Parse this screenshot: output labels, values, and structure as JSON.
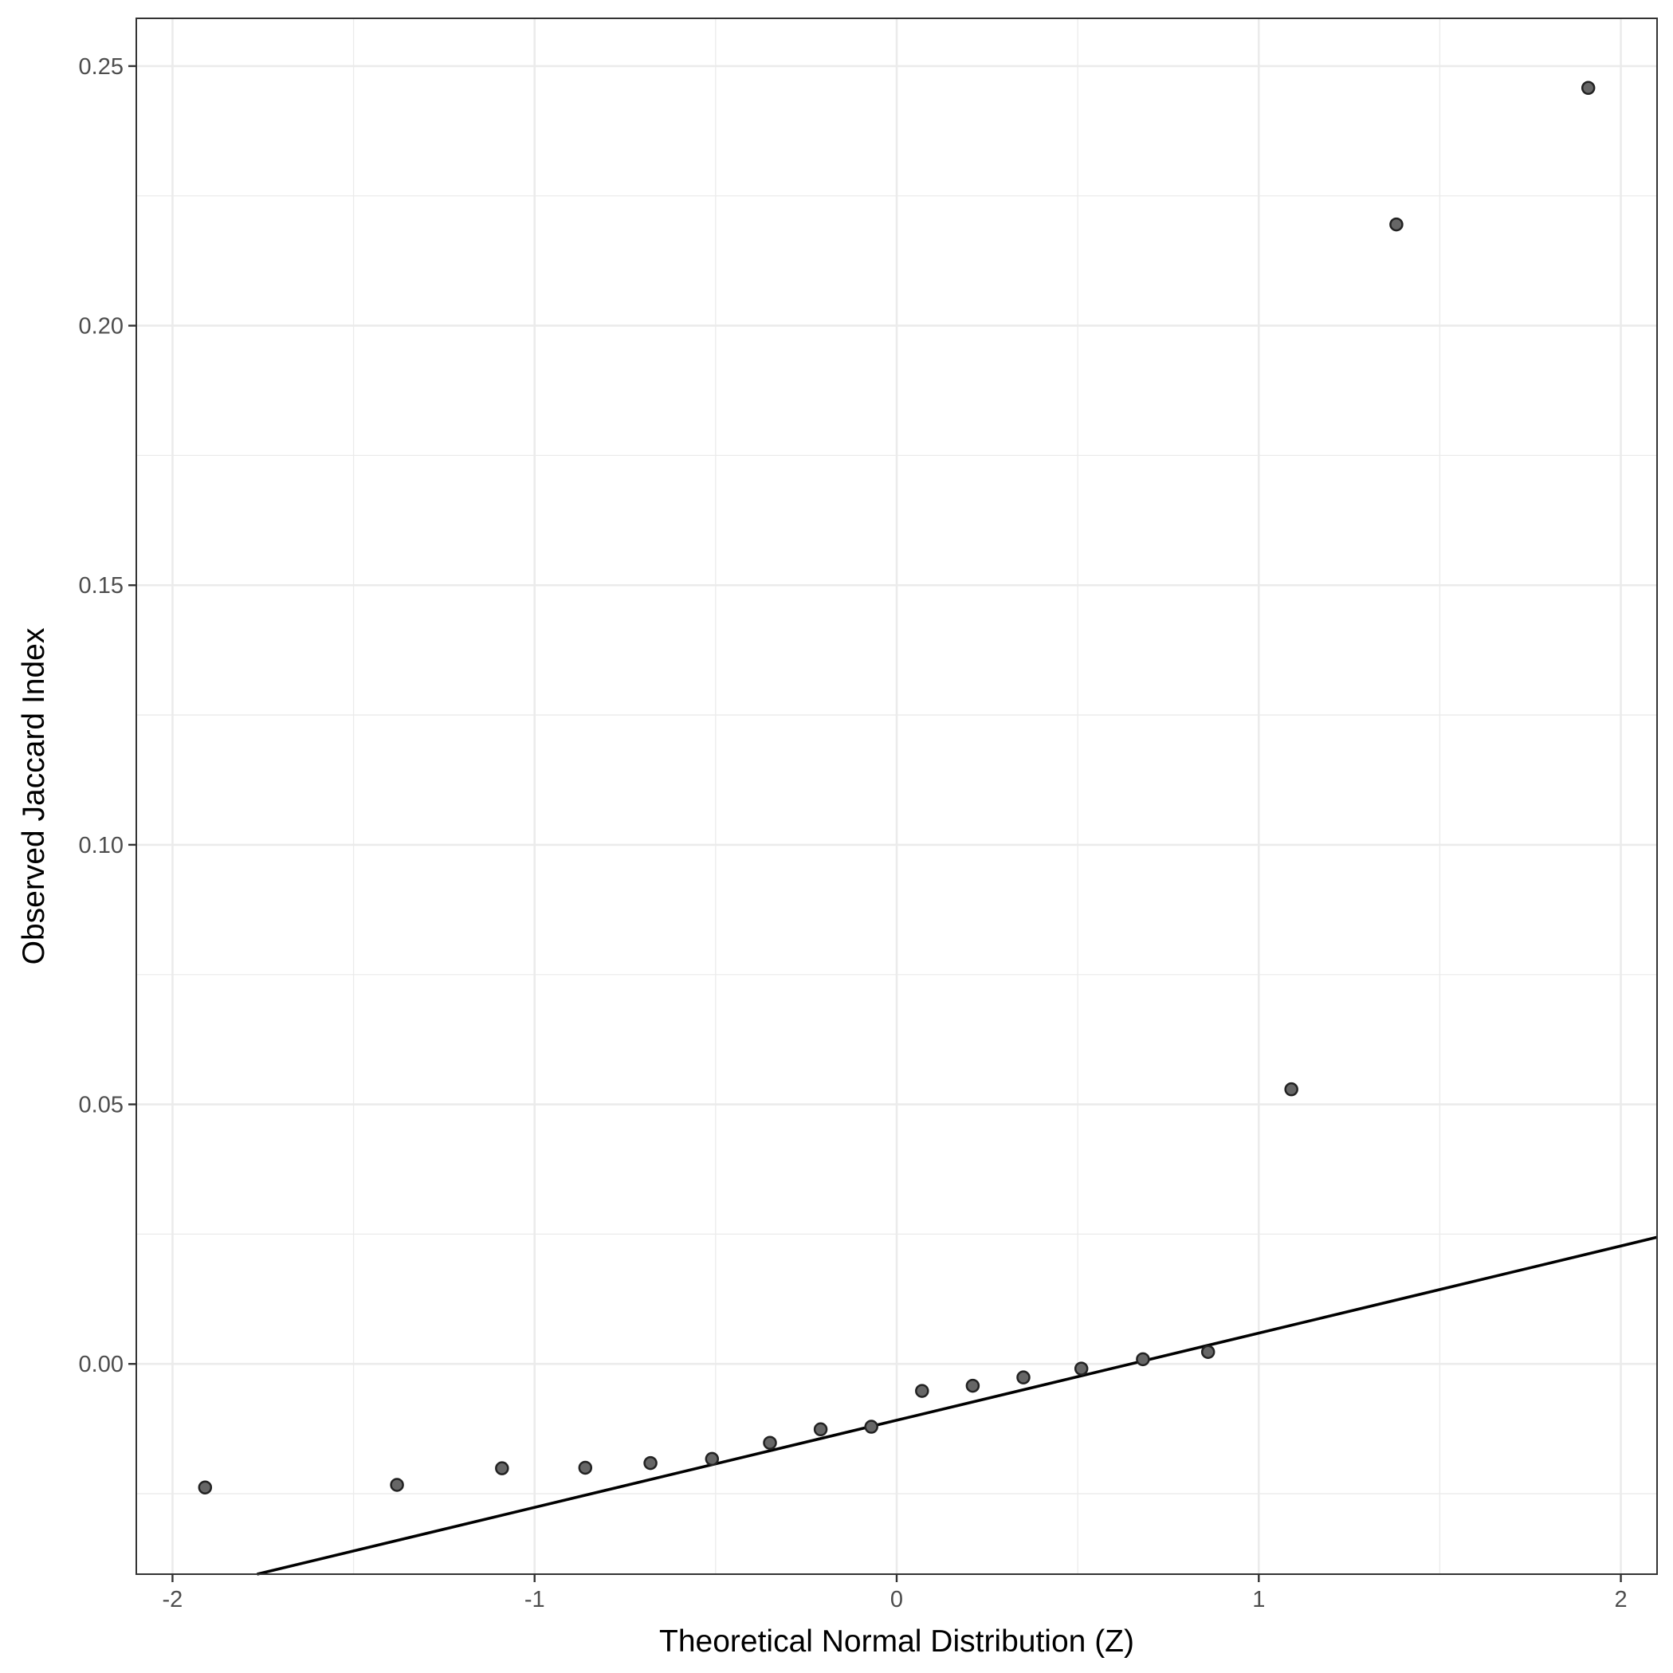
{
  "chart_data": {
    "type": "scatter",
    "subtype": "qq-plot",
    "title": "",
    "xlabel": "Theoretical Normal Distribution (Z)",
    "ylabel": "Observed Jaccard Index",
    "xlim": [
      -2.1,
      2.1
    ],
    "ylim": [
      -0.0405,
      0.2592
    ],
    "x_ticks": [
      -2,
      -1,
      0,
      1,
      2
    ],
    "x_tick_labels": [
      "-2",
      "-1",
      "0",
      "1",
      "2"
    ],
    "y_ticks": [
      0.0,
      0.05,
      0.1,
      0.15,
      0.2,
      0.25
    ],
    "y_tick_labels": [
      "0.00",
      "0.05",
      "0.10",
      "0.15",
      "0.20",
      "0.25"
    ],
    "grid": true,
    "point_color": "#666666",
    "line_color": "#000000",
    "points": {
      "x": [
        -1.91,
        -1.38,
        -1.09,
        -0.86,
        -0.68,
        -0.51,
        -0.35,
        -0.21,
        -0.07,
        0.07,
        0.21,
        0.35,
        0.51,
        0.68,
        0.86,
        1.09,
        1.38,
        1.91
      ],
      "y": [
        -0.0238,
        -0.0233,
        -0.0201,
        -0.02,
        -0.0191,
        -0.0183,
        -0.0152,
        -0.0126,
        -0.0121,
        -0.0052,
        -0.0042,
        -0.0026,
        -0.0009,
        0.0009,
        0.0023,
        0.0529,
        0.2195,
        0.2458
      ]
    },
    "reference_line": {
      "x": [
        -2.1,
        2.1
      ],
      "y": [
        -0.0461,
        0.0244
      ]
    }
  }
}
